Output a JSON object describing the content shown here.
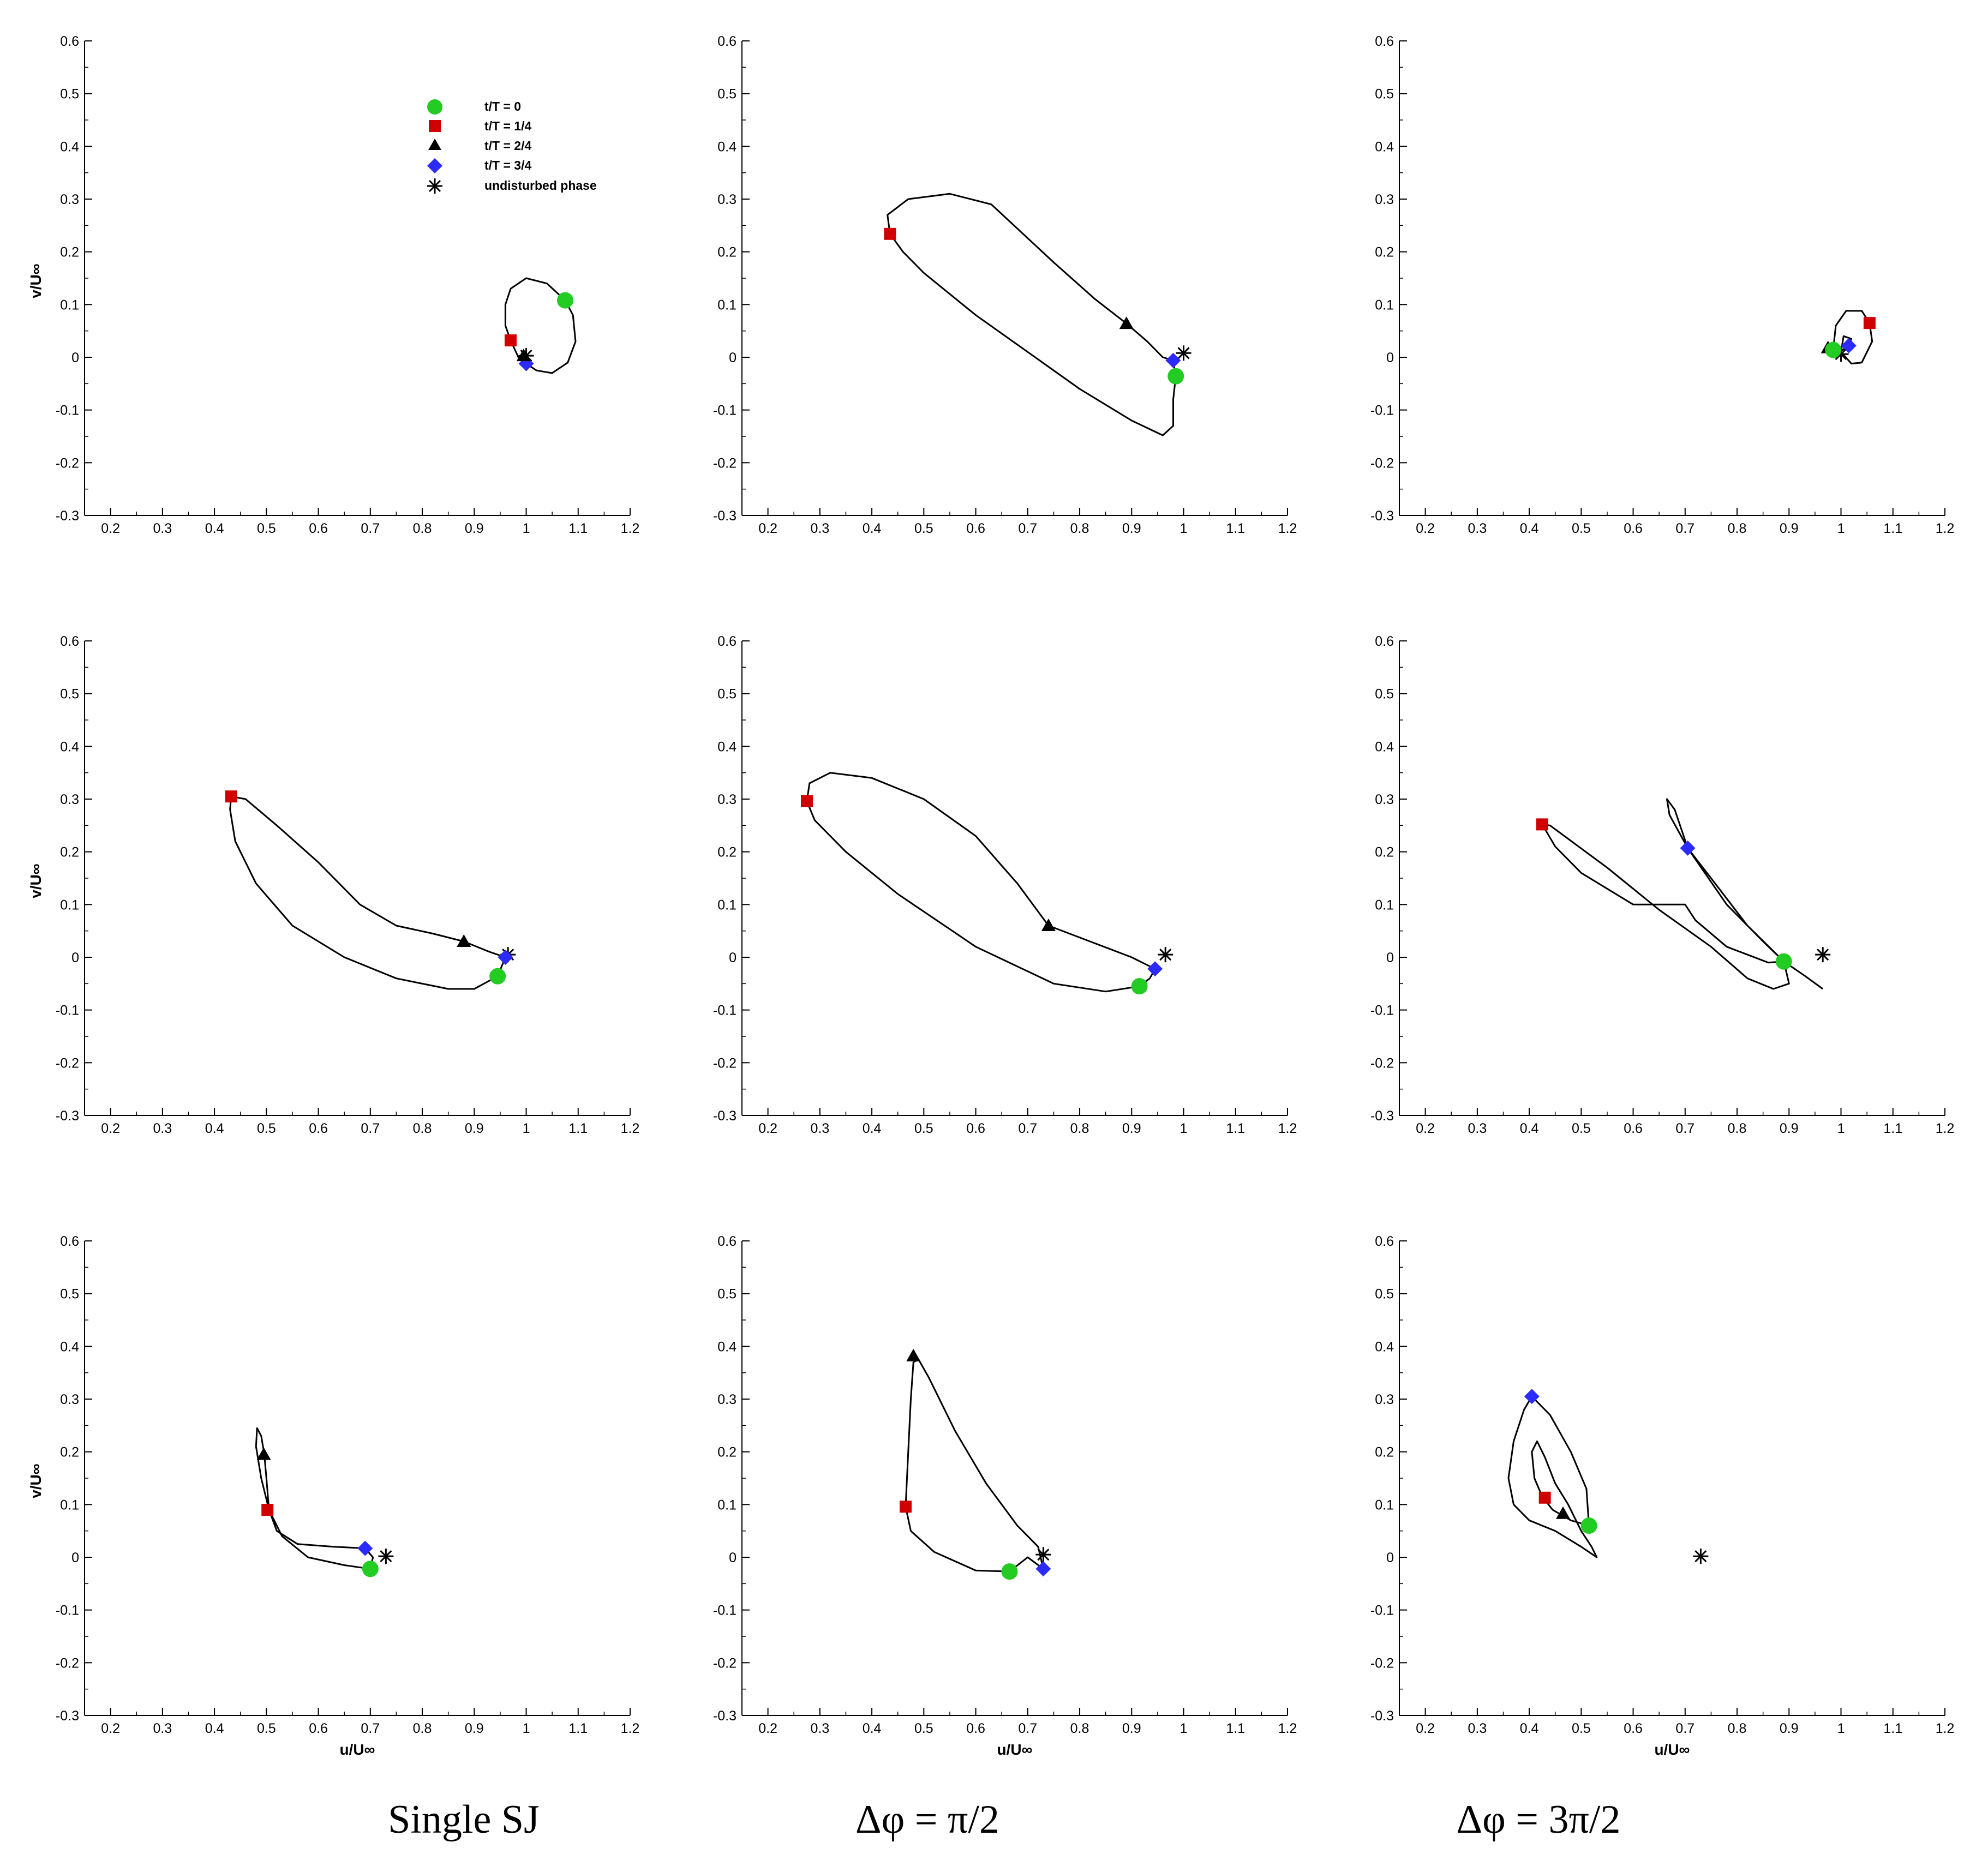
{
  "chart_data": [
    {
      "type": "line",
      "panel": "single-sj-row1",
      "xlim": [
        0.15,
        1.2
      ],
      "ylim": [
        -0.3,
        0.6
      ],
      "xticks": [
        0.2,
        0.3,
        0.4,
        0.5,
        0.6,
        0.7,
        0.8,
        0.9,
        1,
        1.1,
        1.2
      ],
      "yticks": [
        -0.3,
        -0.2,
        -0.1,
        0,
        0.1,
        0.2,
        0.3,
        0.4,
        0.5,
        0.6
      ],
      "xlabel": "",
      "ylabel": "v/U∞",
      "trajectory": [
        [
          1.075,
          0.108
        ],
        [
          1.09,
          0.08
        ],
        [
          1.095,
          0.03
        ],
        [
          1.08,
          -0.01
        ],
        [
          1.05,
          -0.03
        ],
        [
          1.02,
          -0.025
        ],
        [
          1.0,
          -0.012
        ],
        [
          0.985,
          0.0
        ],
        [
          0.97,
          0.032
        ],
        [
          0.96,
          0.06
        ],
        [
          0.96,
          0.1
        ],
        [
          0.97,
          0.13
        ],
        [
          1.0,
          0.15
        ],
        [
          1.04,
          0.14
        ],
        [
          1.075,
          0.108
        ]
      ],
      "markers": {
        "t0": [
          1.075,
          0.108
        ],
        "t1": [
          0.97,
          0.032
        ],
        "t2": [
          0.995,
          0.003
        ],
        "t3": [
          1.0,
          -0.012
        ],
        "undisturbed": [
          1.0,
          0.003
        ]
      }
    },
    {
      "type": "line",
      "panel": "dphi-pi2-row1",
      "xlim": [
        0.15,
        1.2
      ],
      "ylim": [
        -0.3,
        0.6
      ],
      "xticks": [
        0.2,
        0.3,
        0.4,
        0.5,
        0.6,
        0.7,
        0.8,
        0.9,
        1,
        1.1,
        1.2
      ],
      "yticks": [
        -0.3,
        -0.2,
        -0.1,
        0,
        0.1,
        0.2,
        0.3,
        0.4,
        0.5,
        0.6
      ],
      "xlabel": "",
      "ylabel": "",
      "trajectory": [
        [
          0.985,
          -0.036
        ],
        [
          0.98,
          -0.08
        ],
        [
          0.98,
          -0.13
        ],
        [
          0.96,
          -0.148
        ],
        [
          0.9,
          -0.12
        ],
        [
          0.8,
          -0.06
        ],
        [
          0.7,
          0.01
        ],
        [
          0.6,
          0.08
        ],
        [
          0.5,
          0.16
        ],
        [
          0.46,
          0.2
        ],
        [
          0.435,
          0.234
        ],
        [
          0.43,
          0.27
        ],
        [
          0.47,
          0.3
        ],
        [
          0.55,
          0.31
        ],
        [
          0.63,
          0.29
        ],
        [
          0.75,
          0.18
        ],
        [
          0.83,
          0.11
        ],
        [
          0.89,
          0.064
        ],
        [
          0.93,
          0.03
        ],
        [
          0.96,
          0.0
        ],
        [
          0.98,
          -0.006
        ],
        [
          0.985,
          -0.036
        ]
      ],
      "markers": {
        "t0": [
          0.985,
          -0.036
        ],
        "t1": [
          0.435,
          0.234
        ],
        "t2": [
          0.89,
          0.064
        ],
        "t3": [
          0.98,
          -0.006
        ],
        "undisturbed": [
          1.0,
          0.008
        ]
      }
    },
    {
      "type": "line",
      "panel": "dphi-3pi2-row1",
      "xlim": [
        0.15,
        1.2
      ],
      "ylim": [
        -0.3,
        0.6
      ],
      "xticks": [
        0.2,
        0.3,
        0.4,
        0.5,
        0.6,
        0.7,
        0.8,
        0.9,
        1,
        1.1,
        1.2
      ],
      "yticks": [
        -0.3,
        -0.2,
        -0.1,
        0,
        0.1,
        0.2,
        0.3,
        0.4,
        0.5,
        0.6
      ],
      "xlabel": "",
      "ylabel": "",
      "trajectory": [
        [
          0.985,
          0.014
        ],
        [
          0.99,
          0.06
        ],
        [
          1.01,
          0.088
        ],
        [
          1.04,
          0.088
        ],
        [
          1.055,
          0.065
        ],
        [
          1.06,
          0.03
        ],
        [
          1.04,
          -0.01
        ],
        [
          1.02,
          -0.012
        ],
        [
          1.0,
          0.01
        ],
        [
          1.005,
          0.04
        ],
        [
          1.02,
          0.035
        ],
        [
          1.015,
          0.022
        ],
        [
          1.0,
          0.012
        ],
        [
          0.985,
          0.014
        ]
      ],
      "markers": {
        "t0": [
          0.985,
          0.014
        ],
        "t1": [
          1.055,
          0.065
        ],
        "t2": [
          0.975,
          0.018
        ],
        "t3": [
          1.015,
          0.022
        ],
        "undisturbed": [
          1.0,
          0.006
        ]
      }
    },
    {
      "type": "line",
      "panel": "single-sj-row2",
      "xlim": [
        0.15,
        1.2
      ],
      "ylim": [
        -0.3,
        0.6
      ],
      "xticks": [
        0.2,
        0.3,
        0.4,
        0.5,
        0.6,
        0.7,
        0.8,
        0.9,
        1,
        1.1,
        1.2
      ],
      "yticks": [
        -0.3,
        -0.2,
        -0.1,
        0,
        0.1,
        0.2,
        0.3,
        0.4,
        0.5,
        0.6
      ],
      "xlabel": "",
      "ylabel": "v/U∞",
      "trajectory": [
        [
          0.945,
          -0.036
        ],
        [
          0.9,
          -0.06
        ],
        [
          0.85,
          -0.06
        ],
        [
          0.75,
          -0.04
        ],
        [
          0.65,
          0.0
        ],
        [
          0.55,
          0.06
        ],
        [
          0.48,
          0.14
        ],
        [
          0.44,
          0.22
        ],
        [
          0.43,
          0.28
        ],
        [
          0.432,
          0.305
        ],
        [
          0.46,
          0.3
        ],
        [
          0.52,
          0.25
        ],
        [
          0.6,
          0.18
        ],
        [
          0.68,
          0.1
        ],
        [
          0.75,
          0.06
        ],
        [
          0.82,
          0.045
        ],
        [
          0.88,
          0.03
        ],
        [
          0.93,
          0.01
        ],
        [
          0.96,
          0.0
        ],
        [
          0.945,
          -0.036
        ]
      ],
      "markers": {
        "t0": [
          0.945,
          -0.036
        ],
        "t1": [
          0.432,
          0.305
        ],
        "t2": [
          0.88,
          0.03
        ],
        "t3": [
          0.96,
          0.0
        ],
        "undisturbed": [
          0.965,
          0.005
        ]
      }
    },
    {
      "type": "line",
      "panel": "dphi-pi2-row2",
      "xlim": [
        0.15,
        1.2
      ],
      "ylim": [
        -0.3,
        0.6
      ],
      "xticks": [
        0.2,
        0.3,
        0.4,
        0.5,
        0.6,
        0.7,
        0.8,
        0.9,
        1,
        1.1,
        1.2
      ],
      "yticks": [
        -0.3,
        -0.2,
        -0.1,
        0,
        0.1,
        0.2,
        0.3,
        0.4,
        0.5,
        0.6
      ],
      "xlabel": "",
      "ylabel": "",
      "trajectory": [
        [
          0.915,
          -0.055
        ],
        [
          0.85,
          -0.065
        ],
        [
          0.75,
          -0.05
        ],
        [
          0.6,
          0.02
        ],
        [
          0.45,
          0.12
        ],
        [
          0.35,
          0.2
        ],
        [
          0.29,
          0.26
        ],
        [
          0.275,
          0.296
        ],
        [
          0.28,
          0.33
        ],
        [
          0.32,
          0.35
        ],
        [
          0.4,
          0.34
        ],
        [
          0.5,
          0.3
        ],
        [
          0.6,
          0.23
        ],
        [
          0.68,
          0.14
        ],
        [
          0.74,
          0.06
        ],
        [
          0.82,
          0.03
        ],
        [
          0.9,
          0.0
        ],
        [
          0.945,
          -0.022
        ],
        [
          0.935,
          -0.04
        ],
        [
          0.915,
          -0.055
        ]
      ],
      "markers": {
        "t0": [
          0.915,
          -0.055
        ],
        "t1": [
          0.275,
          0.296
        ],
        "t2": [
          0.74,
          0.06
        ],
        "t3": [
          0.945,
          -0.022
        ],
        "undisturbed": [
          0.965,
          0.005
        ]
      }
    },
    {
      "type": "line",
      "panel": "dphi-3pi2-row2",
      "xlim": [
        0.15,
        1.2
      ],
      "ylim": [
        -0.3,
        0.6
      ],
      "xticks": [
        0.2,
        0.3,
        0.4,
        0.5,
        0.6,
        0.7,
        0.8,
        0.9,
        1,
        1.1,
        1.2
      ],
      "yticks": [
        -0.3,
        -0.2,
        -0.1,
        0,
        0.1,
        0.2,
        0.3,
        0.4,
        0.5,
        0.6
      ],
      "xlabel": "",
      "ylabel": "",
      "trajectory": [
        [
          0.89,
          -0.008
        ],
        [
          0.86,
          -0.01
        ],
        [
          0.78,
          0.02
        ],
        [
          0.72,
          0.07
        ],
        [
          0.7,
          0.1
        ],
        [
          0.6,
          0.1
        ],
        [
          0.5,
          0.16
        ],
        [
          0.45,
          0.21
        ],
        [
          0.425,
          0.252
        ],
        [
          0.44,
          0.25
        ],
        [
          0.55,
          0.17
        ],
        [
          0.65,
          0.09
        ],
        [
          0.75,
          0.02
        ],
        [
          0.82,
          -0.04
        ],
        [
          0.87,
          -0.06
        ],
        [
          0.9,
          -0.05
        ],
        [
          0.89,
          -0.008
        ],
        [
          0.82,
          0.06
        ],
        [
          0.75,
          0.15
        ],
        [
          0.705,
          0.207
        ],
        [
          0.67,
          0.27
        ],
        [
          0.665,
          0.3
        ],
        [
          0.68,
          0.28
        ],
        [
          0.705,
          0.207
        ],
        [
          0.78,
          0.1
        ],
        [
          0.85,
          0.03
        ],
        [
          0.89,
          -0.008
        ],
        [
          0.93,
          -0.035
        ],
        [
          0.965,
          -0.06
        ]
      ],
      "markers": {
        "t0": [
          0.89,
          -0.008
        ],
        "t1": [
          0.425,
          0.252
        ],
        "t3": [
          0.705,
          0.207
        ],
        "undisturbed": [
          0.965,
          0.005
        ]
      }
    },
    {
      "type": "line",
      "panel": "single-sj-row3",
      "xlim": [
        0.15,
        1.2
      ],
      "ylim": [
        -0.3,
        0.6
      ],
      "xticks": [
        0.2,
        0.3,
        0.4,
        0.5,
        0.6,
        0.7,
        0.8,
        0.9,
        1,
        1.1,
        1.2
      ],
      "yticks": [
        -0.3,
        -0.2,
        -0.1,
        0,
        0.1,
        0.2,
        0.3,
        0.4,
        0.5,
        0.6
      ],
      "xlabel": "u/U∞",
      "ylabel": "v/U∞",
      "trajectory": [
        [
          0.7,
          -0.022
        ],
        [
          0.65,
          -0.015
        ],
        [
          0.58,
          0.0
        ],
        [
          0.53,
          0.04
        ],
        [
          0.505,
          0.09
        ],
        [
          0.49,
          0.15
        ],
        [
          0.48,
          0.21
        ],
        [
          0.482,
          0.245
        ],
        [
          0.49,
          0.23
        ],
        [
          0.496,
          0.195
        ],
        [
          0.5,
          0.15
        ],
        [
          0.505,
          0.09
        ],
        [
          0.52,
          0.05
        ],
        [
          0.56,
          0.025
        ],
        [
          0.63,
          0.02
        ],
        [
          0.69,
          0.017
        ],
        [
          0.705,
          0.0
        ],
        [
          0.7,
          -0.022
        ]
      ],
      "markers": {
        "t0": [
          0.7,
          -0.022
        ],
        "t1": [
          0.502,
          0.09
        ],
        "t2": [
          0.495,
          0.195
        ],
        "t3": [
          0.69,
          0.017
        ],
        "undisturbed": [
          0.73,
          0.002
        ]
      }
    },
    {
      "type": "line",
      "panel": "dphi-pi2-row3",
      "xlim": [
        0.15,
        1.2
      ],
      "ylim": [
        -0.3,
        0.6
      ],
      "xticks": [
        0.2,
        0.3,
        0.4,
        0.5,
        0.6,
        0.7,
        0.8,
        0.9,
        1,
        1.1,
        1.2
      ],
      "yticks": [
        -0.3,
        -0.2,
        -0.1,
        0,
        0.1,
        0.2,
        0.3,
        0.4,
        0.5,
        0.6
      ],
      "xlabel": "u/U∞",
      "ylabel": "",
      "trajectory": [
        [
          0.665,
          -0.027
        ],
        [
          0.6,
          -0.025
        ],
        [
          0.52,
          0.01
        ],
        [
          0.475,
          0.05
        ],
        [
          0.465,
          0.096
        ],
        [
          0.47,
          0.2
        ],
        [
          0.475,
          0.3
        ],
        [
          0.48,
          0.37
        ],
        [
          0.49,
          0.375
        ],
        [
          0.51,
          0.34
        ],
        [
          0.56,
          0.24
        ],
        [
          0.62,
          0.14
        ],
        [
          0.68,
          0.06
        ],
        [
          0.72,
          0.02
        ],
        [
          0.73,
          -0.022
        ],
        [
          0.7,
          0.0
        ],
        [
          0.665,
          -0.027
        ]
      ],
      "markers": {
        "t0": [
          0.665,
          -0.027
        ],
        "t1": [
          0.465,
          0.096
        ],
        "t2": [
          0.48,
          0.382
        ],
        "t3": [
          0.73,
          -0.022
        ],
        "undisturbed": [
          0.73,
          0.005
        ]
      }
    },
    {
      "type": "line",
      "panel": "dphi-3pi2-row3",
      "xlim": [
        0.15,
        1.2
      ],
      "ylim": [
        -0.3,
        0.6
      ],
      "xticks": [
        0.2,
        0.3,
        0.4,
        0.5,
        0.6,
        0.7,
        0.8,
        0.9,
        1,
        1.1,
        1.2
      ],
      "yticks": [
        -0.3,
        -0.2,
        -0.1,
        0,
        0.1,
        0.2,
        0.3,
        0.4,
        0.5,
        0.6
      ],
      "xlabel": "u/U∞",
      "ylabel": "",
      "trajectory": [
        [
          0.515,
          0.06
        ],
        [
          0.48,
          0.07
        ],
        [
          0.445,
          0.09
        ],
        [
          0.425,
          0.115
        ],
        [
          0.41,
          0.15
        ],
        [
          0.405,
          0.2
        ],
        [
          0.415,
          0.22
        ],
        [
          0.43,
          0.19
        ],
        [
          0.45,
          0.14
        ],
        [
          0.475,
          0.1
        ],
        [
          0.5,
          0.05
        ],
        [
          0.52,
          0.02
        ],
        [
          0.53,
          0.0
        ],
        [
          0.5,
          0.02
        ],
        [
          0.45,
          0.05
        ],
        [
          0.4,
          0.07
        ],
        [
          0.37,
          0.1
        ],
        [
          0.36,
          0.15
        ],
        [
          0.37,
          0.22
        ],
        [
          0.39,
          0.28
        ],
        [
          0.405,
          0.305
        ],
        [
          0.44,
          0.27
        ],
        [
          0.48,
          0.2
        ],
        [
          0.51,
          0.13
        ],
        [
          0.515,
          0.06
        ]
      ],
      "markers": {
        "t0": [
          0.515,
          0.06
        ],
        "t1": [
          0.43,
          0.113
        ],
        "t2": [
          0.465,
          0.083
        ],
        "t3": [
          0.405,
          0.305
        ],
        "undisturbed": [
          0.73,
          0.002
        ]
      }
    }
  ],
  "legend": {
    "t0": "t/T = 0",
    "t1": "t/T = 1/4",
    "t2": "t/T = 2/4",
    "t3": "t/T = 3/4",
    "undisturbed": "undisturbed phase"
  },
  "captions": {
    "col1": "Single SJ",
    "col2": "Δφ = π/2",
    "col3": "Δφ = 3π/2"
  },
  "colors": {
    "t0": "#22cc22",
    "t1": "#d00000",
    "t2": "#000000",
    "t3": "#2b2bff",
    "curve": "#000000"
  }
}
